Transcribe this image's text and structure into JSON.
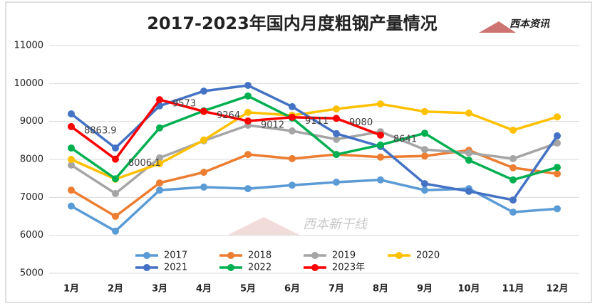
{
  "chart_data": {
    "type": "line",
    "title": "2017-2023年国内月度粗钢产量情况",
    "logo": "西本资讯",
    "watermark": "西本新干线",
    "categories": [
      "1月",
      "2月",
      "3月",
      "4月",
      "5月",
      "6月",
      "7月",
      "8月",
      "9月",
      "10月",
      "11月",
      "12月"
    ],
    "ylim": [
      5000,
      11000
    ],
    "yticks": [
      5000,
      6000,
      7000,
      8000,
      9000,
      10000,
      11000
    ],
    "grid": true,
    "series": [
      {
        "name": "2017",
        "color": "#5b9bd5",
        "values": [
          6770,
          6110,
          7190,
          7270,
          7230,
          7320,
          7400,
          7460,
          7190,
          7230,
          6610,
          6700
        ]
      },
      {
        "name": "2018",
        "color": "#ed7d31",
        "values": [
          7190,
          6500,
          7380,
          7660,
          8130,
          8020,
          8130,
          8060,
          8090,
          8240,
          7780,
          7620
        ]
      },
      {
        "name": "2019",
        "color": "#a5a5a5",
        "values": [
          7850,
          7100,
          8040,
          8490,
          8900,
          8750,
          8530,
          8730,
          8260,
          8170,
          8020,
          8430
        ]
      },
      {
        "name": "2020",
        "color": "#ffc000",
        "values": [
          8000,
          7480,
          7890,
          8510,
          9240,
          9160,
          9330,
          9460,
          9260,
          9220,
          8770,
          9120
        ]
      },
      {
        "name": "2021",
        "color": "#4472c4",
        "values": [
          9200,
          8300,
          9410,
          9800,
          9950,
          9390,
          8680,
          8340,
          7360,
          7160,
          6930,
          8620
        ]
      },
      {
        "name": "2022",
        "color": "#00b050",
        "values": [
          8300,
          7490,
          8830,
          9280,
          9670,
          9090,
          8130,
          8380,
          8690,
          7980,
          7460,
          7790
        ]
      },
      {
        "name": "2023年",
        "color": "#ff0000",
        "values": [
          8863.9,
          8006.1,
          9573,
          9264,
          9012,
          9111,
          9080,
          8641,
          null,
          null,
          null,
          null
        ],
        "labels": true
      }
    ]
  }
}
